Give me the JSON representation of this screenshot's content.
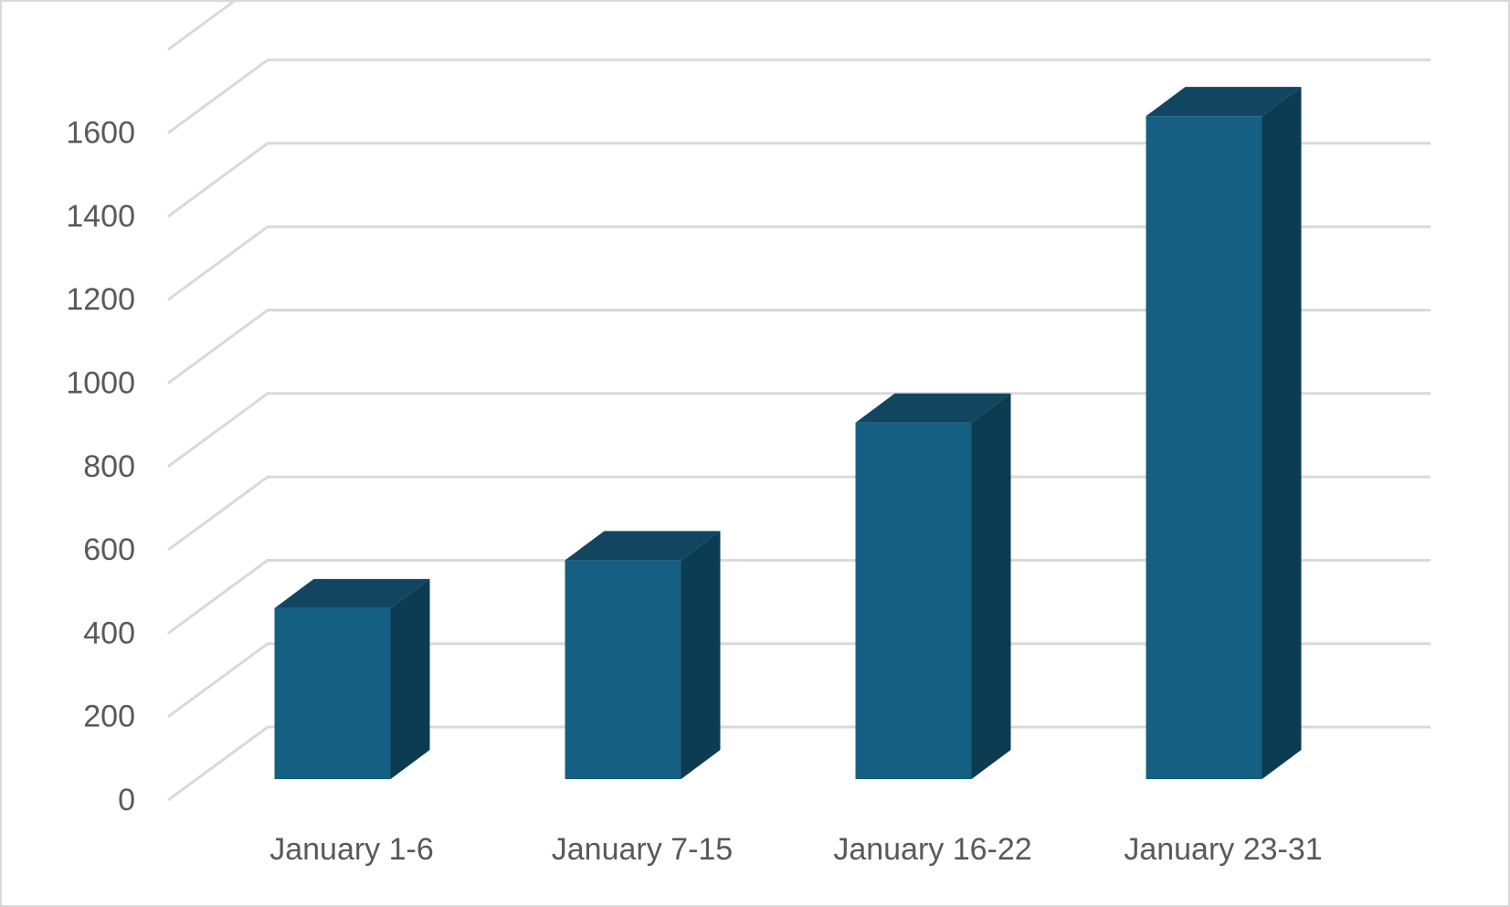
{
  "chart_data": {
    "type": "bar",
    "style": "3d-column",
    "categories": [
      "January 1-6",
      "January 7-15",
      "January 16-22",
      "January 23-31"
    ],
    "values": [
      410,
      525,
      855,
      1590
    ],
    "title": "",
    "xlabel": "",
    "ylabel": "",
    "ylim": [
      0,
      1800
    ],
    "y_ticks": [
      "0",
      "200",
      "400",
      "600",
      "800",
      "1000",
      "1200",
      "1400",
      "1600"
    ],
    "grid": true,
    "legend": "none"
  },
  "colors": {
    "bar_front": "#156082",
    "bar_top": "#124660",
    "bar_side": "#0c3c51",
    "grid": "#d9d9d9",
    "tick_text": "#595959"
  }
}
